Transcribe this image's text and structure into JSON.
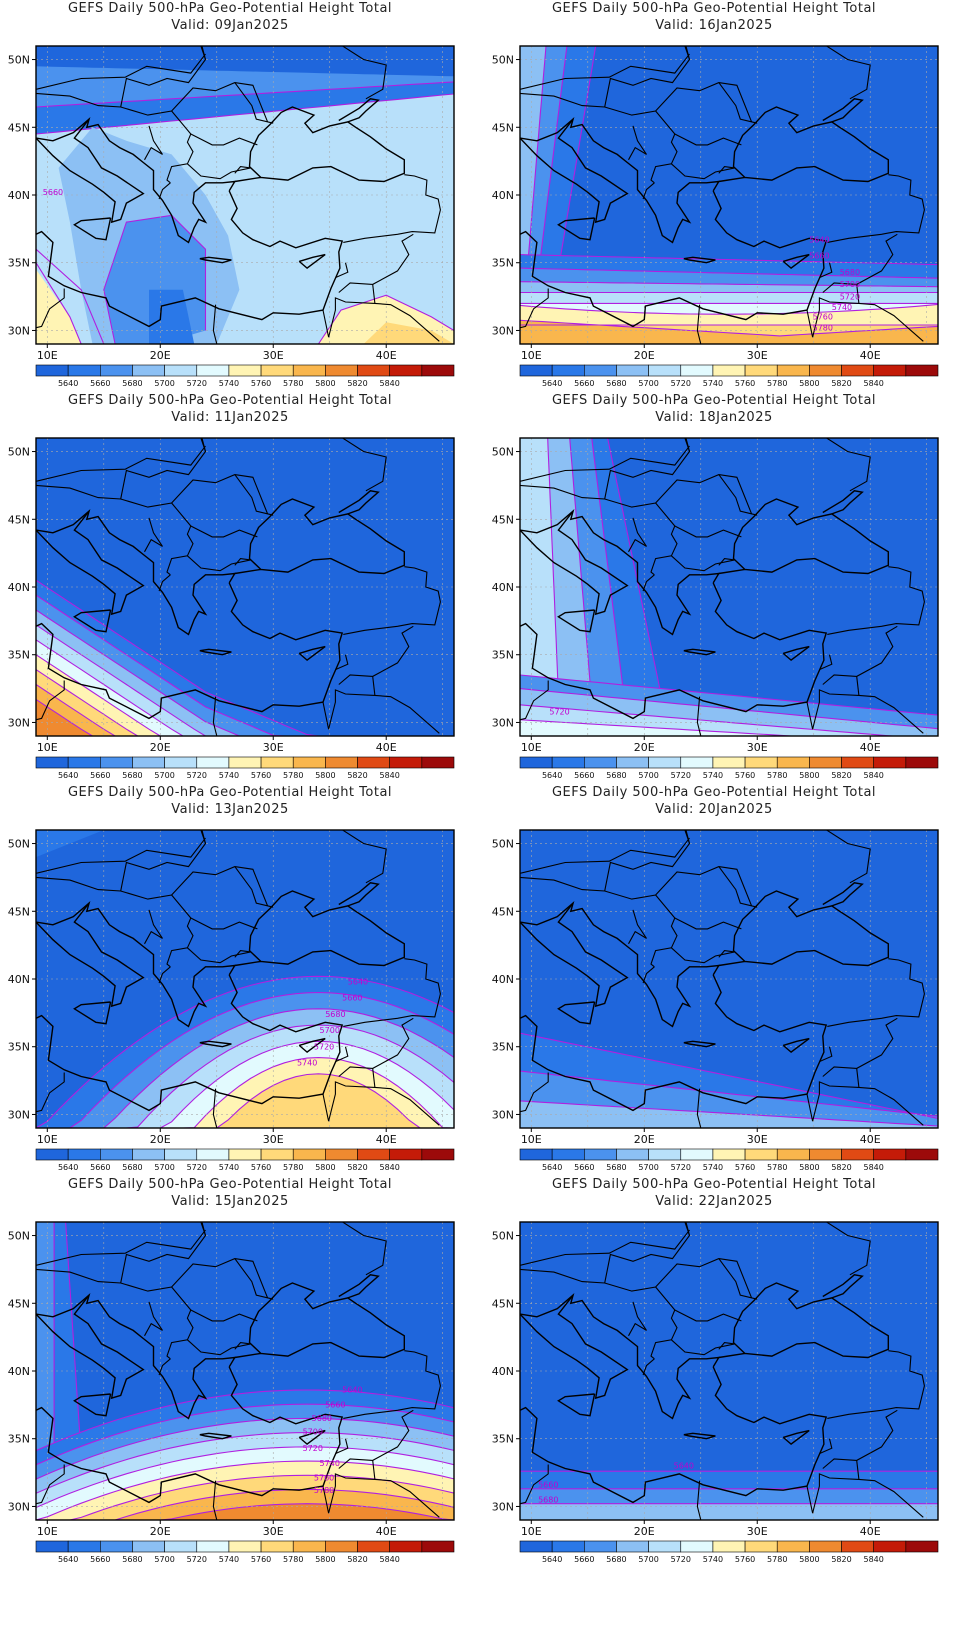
{
  "panel_title": "GEFS Daily 500-hPa Geo-Potential Height Total",
  "panels": [
    {
      "valid": "Valid: 09Jan2025",
      "pattern": "ridge_south",
      "contour_labels": [
        "5660"
      ]
    },
    {
      "valid": "Valid: 16Jan2025",
      "pattern": "west_band_south_ridge",
      "contour_labels": [
        "5640",
        "5660",
        "5680",
        "5700",
        "5720",
        "5740",
        "5760",
        "5780"
      ]
    },
    {
      "valid": "Valid: 11Jan2025",
      "pattern": "southwest_ridge",
      "contour_labels": []
    },
    {
      "valid": "Valid: 18Jan2025",
      "pattern": "west_trough",
      "contour_labels": [
        "5720"
      ]
    },
    {
      "valid": "Valid: 13Jan2025",
      "pattern": "southeast_ridge",
      "contour_labels": [
        "5640",
        "5660",
        "5680",
        "5700",
        "5720",
        "5740"
      ]
    },
    {
      "valid": "Valid: 20Jan2025",
      "pattern": "weak_south",
      "contour_labels": []
    },
    {
      "valid": "Valid: 15Jan2025",
      "pattern": "south_ridge",
      "contour_labels": [
        "5640",
        "5660",
        "5680",
        "5700",
        "5720",
        "5740",
        "5760",
        "5780"
      ]
    },
    {
      "valid": "Valid: 22Jan2025",
      "pattern": "flat",
      "contour_labels": [
        "5640",
        "5660",
        "5680"
      ]
    }
  ],
  "axes": {
    "lat_labels": [
      "50N",
      "45N",
      "40N",
      "35N",
      "30N"
    ],
    "lon_labels": [
      "10E",
      "20E",
      "30E",
      "40E"
    ]
  },
  "colorbar": {
    "levels": [
      "5640",
      "5660",
      "5680",
      "5700",
      "5720",
      "5740",
      "5760",
      "5780",
      "5800",
      "5820",
      "5840"
    ],
    "colors": [
      "#1f66dc",
      "#2a78e8",
      "#4b92ee",
      "#8cc0f4",
      "#b8e0fa",
      "#e2fafe",
      "#fff4b4",
      "#ffd97a",
      "#f9b64d",
      "#ef8a30",
      "#e04a14",
      "#c41b08",
      "#9c0a0a"
    ]
  },
  "colors": {
    "contour": "#b020e0",
    "coast": "#000000",
    "grid": "#aaaaaa"
  }
}
